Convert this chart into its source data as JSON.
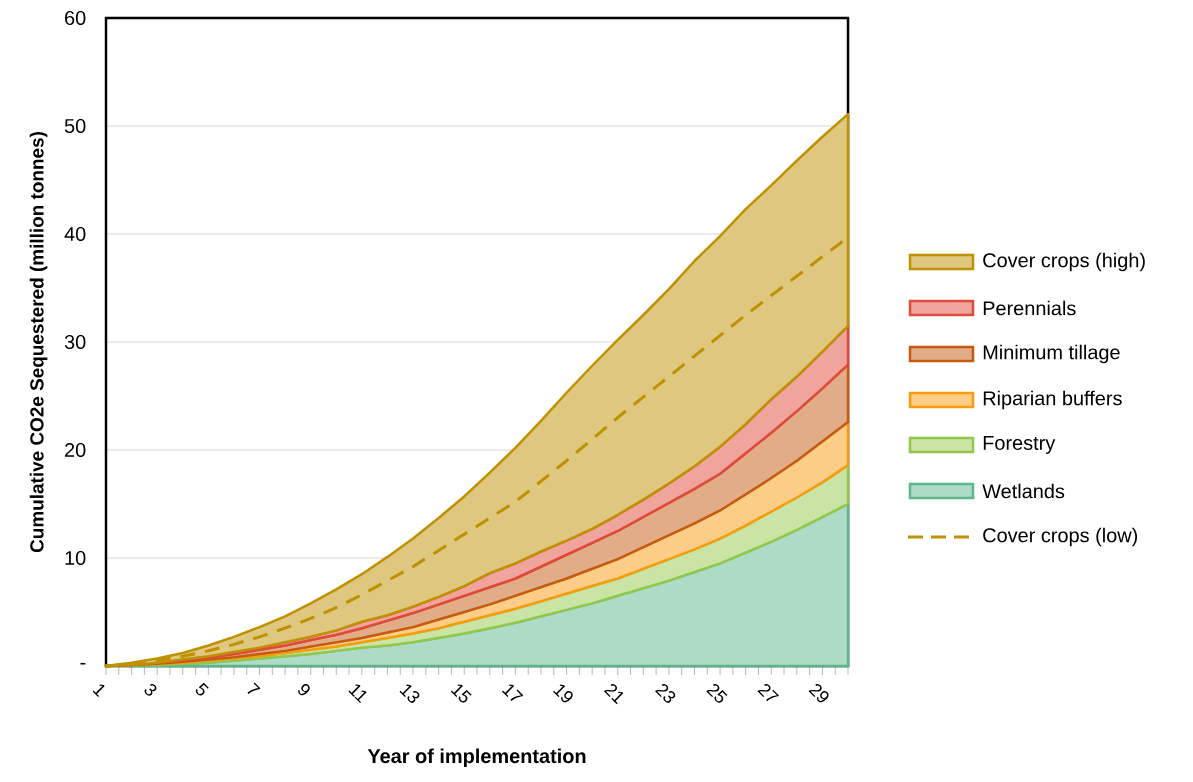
{
  "chart_data": {
    "type": "area",
    "stacked": true,
    "xlabel": "Year of implementation",
    "ylabel": "Cumulative CO2e Sequestered (million tonnes)",
    "categories": [
      "1",
      null,
      "3",
      null,
      "5",
      null,
      "7",
      null,
      "9",
      null,
      "11",
      null,
      "13",
      null,
      "15",
      null,
      "17",
      null,
      "19",
      null,
      "21",
      null,
      "23",
      null,
      "25",
      null,
      "27",
      null,
      "29",
      null
    ],
    "ylim": [
      0,
      60
    ],
    "yticks": [
      {
        "value": 0,
        "label": "-"
      },
      10,
      20,
      30,
      40,
      50,
      60
    ],
    "grid": "y",
    "legend": "right",
    "series": [
      {
        "name": "Wetlands",
        "color": "#5cb88a",
        "values": [
          0,
          0.1,
          0.1,
          0.2,
          0.3,
          0.5,
          0.7,
          0.9,
          1.1,
          1.4,
          1.7,
          1.9,
          2.2,
          2.6,
          3.0,
          3.5,
          4.0,
          4.6,
          5.2,
          5.8,
          6.5,
          7.2,
          7.9,
          8.7,
          9.5,
          10.5,
          11.5,
          12.6,
          13.8,
          15.0
        ]
      },
      {
        "name": "Forestry",
        "color": "#92c84a",
        "values": [
          0,
          0,
          0.1,
          0.1,
          0.2,
          0.2,
          0.2,
          0.3,
          0.4,
          0.4,
          0.5,
          0.7,
          0.8,
          0.9,
          1.1,
          1.2,
          1.3,
          1.4,
          1.5,
          1.6,
          1.6,
          1.8,
          2.0,
          2.1,
          2.3,
          2.5,
          2.8,
          3.0,
          3.2,
          3.6
        ]
      },
      {
        "name": "Riparian buffers",
        "color": "#f89c0e",
        "values": [
          0,
          0,
          0,
          0.1,
          0.1,
          0.1,
          0.2,
          0.2,
          0.3,
          0.4,
          0.4,
          0.5,
          0.6,
          0.8,
          0.9,
          1.0,
          1.2,
          1.3,
          1.4,
          1.6,
          1.8,
          2.0,
          2.2,
          2.4,
          2.6,
          2.9,
          3.1,
          3.4,
          3.8,
          4.0
        ]
      },
      {
        "name": "Minimum tillage",
        "color": "#c55a11",
        "values": [
          0,
          0,
          0.1,
          0.1,
          0.2,
          0.3,
          0.4,
          0.5,
          0.6,
          0.7,
          0.9,
          1.1,
          1.3,
          1.4,
          1.5,
          1.6,
          1.6,
          1.9,
          2.2,
          2.4,
          2.6,
          2.8,
          3.0,
          3.2,
          3.4,
          3.8,
          4.2,
          4.6,
          4.9,
          5.3
        ]
      },
      {
        "name": "Perennials",
        "color": "#e04a3a",
        "values": [
          0,
          0,
          0,
          0.1,
          0.1,
          0.2,
          0.2,
          0.3,
          0.3,
          0.4,
          0.6,
          0.5,
          0.6,
          0.7,
          0.9,
          1.3,
          1.4,
          1.4,
          1.3,
          1.3,
          1.5,
          1.6,
          1.8,
          2.1,
          2.5,
          2.7,
          3.1,
          3.2,
          3.4,
          3.6
        ]
      },
      {
        "name": "Cover crops (high)",
        "color": "#bf9000",
        "values": [
          0,
          0.2,
          0.4,
          0.6,
          1.0,
          1.4,
          1.9,
          2.4,
          3.1,
          3.8,
          4.4,
          5.4,
          6.3,
          7.3,
          8.3,
          9.3,
          10.7,
          12.1,
          13.7,
          15.1,
          16.2,
          17.1,
          18.0,
          19.0,
          19.5,
          19.9,
          19.8,
          20.0,
          19.9,
          19.6
        ]
      },
      {
        "name": "Cover crops (low)",
        "type": "line",
        "line_style": "dashed",
        "color": "#bf9000",
        "values": [
          0,
          0.2,
          0.5,
          0.9,
          1.4,
          2.0,
          2.7,
          3.5,
          4.4,
          5.4,
          6.6,
          7.9,
          9.2,
          10.7,
          12.2,
          13.7,
          15.2,
          17.1,
          19.0,
          21.0,
          23.0,
          24.9,
          26.8,
          28.7,
          30.6,
          32.5,
          34.3,
          36.1,
          37.9,
          39.7
        ]
      }
    ]
  }
}
